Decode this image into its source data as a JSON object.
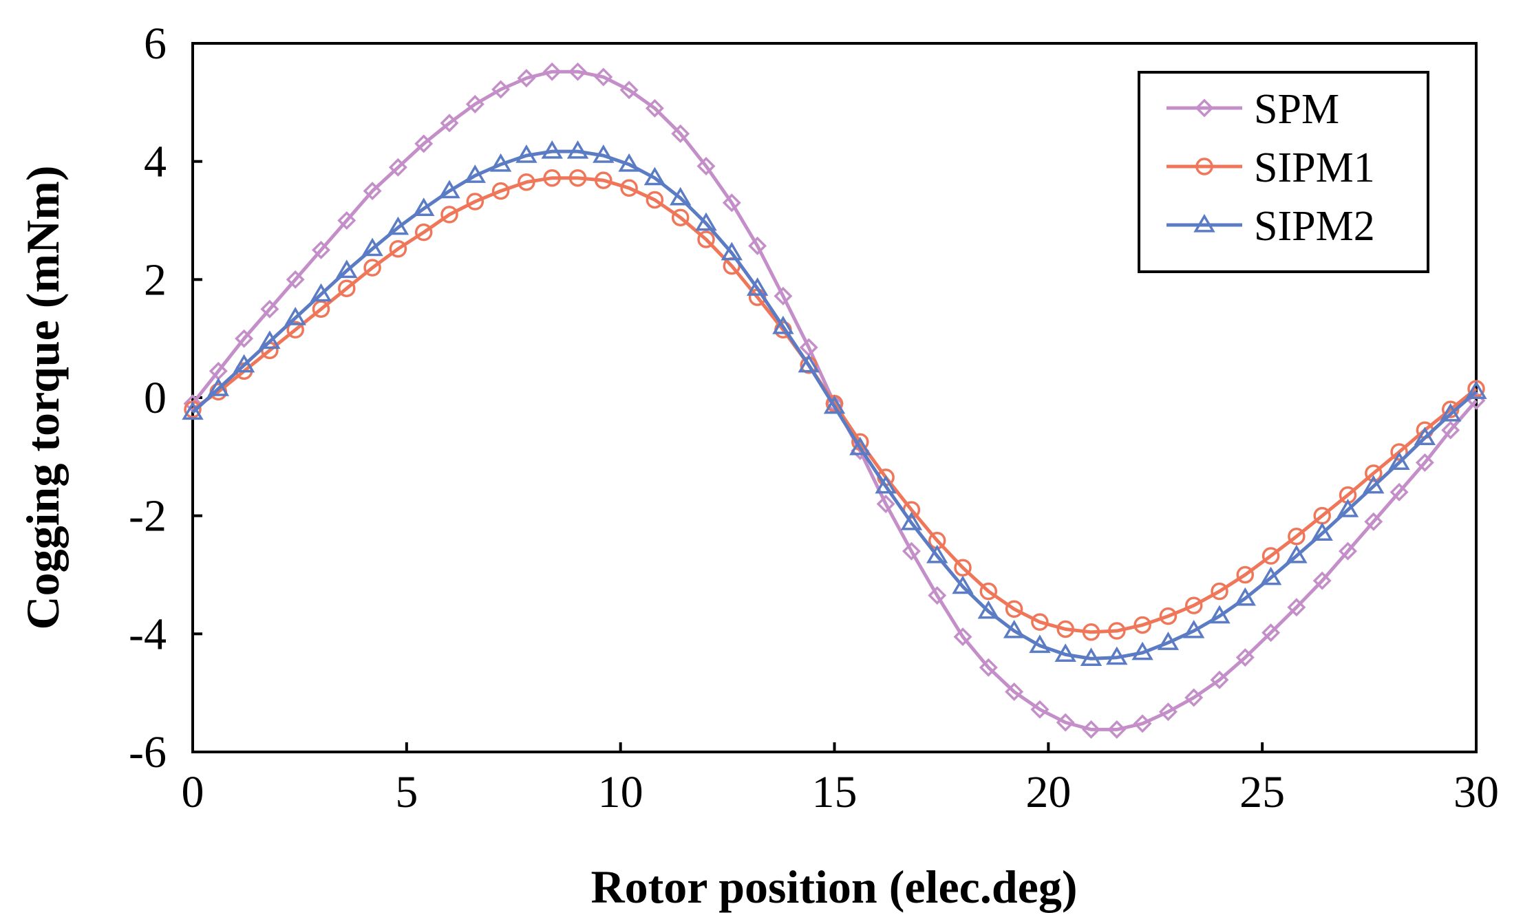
{
  "chart_data": {
    "type": "line",
    "title": "",
    "xlabel": "Rotor position (elec.deg)",
    "ylabel": "Cogging torque (mNm)",
    "xlim": [
      0,
      30
    ],
    "ylim": [
      -6,
      6
    ],
    "xticks": [
      "0",
      "5",
      "10",
      "15",
      "20",
      "25",
      "30"
    ],
    "yticks": [
      "6",
      "4",
      "2",
      "0",
      "-2",
      "-4",
      "-6"
    ],
    "grid": false,
    "legend_position": "top-right",
    "x": [
      0,
      0.6,
      1.2,
      1.8,
      2.4,
      3.0,
      3.6,
      4.2,
      4.8,
      5.4,
      6.0,
      6.6,
      7.2,
      7.8,
      8.4,
      9.0,
      9.6,
      10.2,
      10.8,
      11.4,
      12.0,
      12.6,
      13.2,
      13.8,
      14.4,
      15.0,
      15.6,
      16.2,
      16.8,
      17.4,
      18.0,
      18.6,
      19.2,
      19.8,
      20.4,
      21.0,
      21.6,
      22.2,
      22.8,
      23.4,
      24.0,
      24.6,
      25.2,
      25.8,
      26.4,
      27.0,
      27.6,
      28.2,
      28.8,
      29.4,
      30.0
    ],
    "series": [
      {
        "name": "SPM",
        "color": "#c48fc9",
        "marker": "diamond",
        "values": [
          -0.1,
          0.45,
          1.0,
          1.5,
          2.0,
          2.5,
          3.0,
          3.5,
          3.9,
          4.3,
          4.65,
          4.97,
          5.22,
          5.41,
          5.52,
          5.52,
          5.43,
          5.21,
          4.9,
          4.47,
          3.92,
          3.3,
          2.57,
          1.72,
          0.85,
          -0.1,
          -0.9,
          -1.8,
          -2.6,
          -3.35,
          -4.05,
          -4.57,
          -4.98,
          -5.28,
          -5.5,
          -5.62,
          -5.62,
          -5.52,
          -5.32,
          -5.08,
          -4.78,
          -4.4,
          -3.98,
          -3.55,
          -3.1,
          -2.6,
          -2.1,
          -1.6,
          -1.1,
          -0.55,
          -0.05
        ]
      },
      {
        "name": "SIPM1",
        "color": "#f0765a",
        "marker": "circle",
        "values": [
          -0.2,
          0.1,
          0.45,
          0.8,
          1.15,
          1.5,
          1.85,
          2.2,
          2.52,
          2.8,
          3.1,
          3.32,
          3.5,
          3.65,
          3.72,
          3.72,
          3.68,
          3.55,
          3.35,
          3.05,
          2.68,
          2.23,
          1.7,
          1.15,
          0.55,
          -0.1,
          -0.75,
          -1.35,
          -1.9,
          -2.42,
          -2.88,
          -3.28,
          -3.58,
          -3.8,
          -3.92,
          -3.97,
          -3.95,
          -3.85,
          -3.7,
          -3.52,
          -3.28,
          -3.0,
          -2.68,
          -2.35,
          -2.0,
          -1.65,
          -1.28,
          -0.92,
          -0.55,
          -0.2,
          0.15
        ]
      },
      {
        "name": "SIPM2",
        "color": "#5b7cc4",
        "marker": "triangle",
        "values": [
          -0.25,
          0.15,
          0.55,
          0.95,
          1.35,
          1.75,
          2.15,
          2.52,
          2.88,
          3.2,
          3.5,
          3.76,
          3.95,
          4.1,
          4.17,
          4.17,
          4.1,
          3.95,
          3.72,
          3.38,
          2.95,
          2.45,
          1.85,
          1.2,
          0.55,
          -0.15,
          -0.85,
          -1.5,
          -2.12,
          -2.68,
          -3.2,
          -3.62,
          -3.95,
          -4.2,
          -4.35,
          -4.42,
          -4.4,
          -4.32,
          -4.15,
          -3.95,
          -3.7,
          -3.4,
          -3.05,
          -2.68,
          -2.3,
          -1.9,
          -1.5,
          -1.1,
          -0.68,
          -0.28,
          0.1
        ]
      }
    ]
  }
}
